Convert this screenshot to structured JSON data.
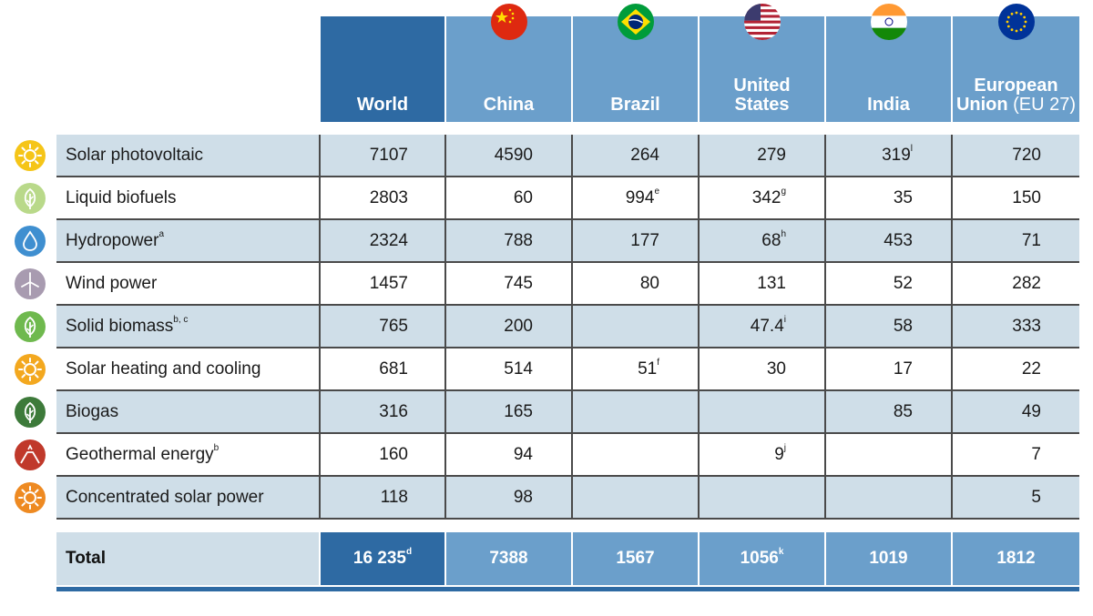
{
  "columns": [
    {
      "name": "World",
      "suffix": ""
    },
    {
      "name": "China",
      "suffix": "",
      "flag": "china-flag"
    },
    {
      "name": "Brazil",
      "suffix": "",
      "flag": "brazil-flag"
    },
    {
      "name": "United States",
      "line1": "United",
      "line2": "States",
      "flag": "us-flag"
    },
    {
      "name": "India",
      "suffix": "",
      "flag": "india-flag"
    },
    {
      "name": "European Union (EU 27)",
      "line1": "European",
      "line2": "Union",
      "line2_suffix": " (EU 27)",
      "flag": "eu-flag"
    }
  ],
  "rows": [
    {
      "label": "Solar photovoltaic",
      "label_sup": "",
      "icon": "sun-icon",
      "icon_color": "#f5c518",
      "values": [
        {
          "v": "7107"
        },
        {
          "v": "4590"
        },
        {
          "v": "264"
        },
        {
          "v": "279"
        },
        {
          "v": "319",
          "sup": "l"
        },
        {
          "v": "720"
        }
      ]
    },
    {
      "label": "Liquid biofuels",
      "label_sup": "",
      "icon": "leaf-icon",
      "icon_color": "#b9d98a",
      "values": [
        {
          "v": "2803"
        },
        {
          "v": "60"
        },
        {
          "v": "994",
          "sup": "e"
        },
        {
          "v": "342",
          "sup": "g"
        },
        {
          "v": "35"
        },
        {
          "v": "150"
        }
      ]
    },
    {
      "label": "Hydropower",
      "label_sup": "a",
      "icon": "water-drop-icon",
      "icon_color": "#3f8fd0",
      "values": [
        {
          "v": "2324"
        },
        {
          "v": "788"
        },
        {
          "v": "177"
        },
        {
          "v": "68",
          "sup": "h"
        },
        {
          "v": "453"
        },
        {
          "v": "71"
        }
      ]
    },
    {
      "label": "Wind power",
      "label_sup": "",
      "icon": "wind-turbine-icon",
      "icon_color": "#a89bb0",
      "values": [
        {
          "v": "1457"
        },
        {
          "v": "745"
        },
        {
          "v": "80"
        },
        {
          "v": "131"
        },
        {
          "v": "52"
        },
        {
          "v": "282"
        }
      ]
    },
    {
      "label": "Solid biomass",
      "label_sup": "b, c",
      "icon": "leaf-icon",
      "icon_color": "#6fb94e",
      "values": [
        {
          "v": "765"
        },
        {
          "v": "200"
        },
        {
          "v": ""
        },
        {
          "v": "47.4",
          "sup": "i"
        },
        {
          "v": "58"
        },
        {
          "v": "333"
        }
      ]
    },
    {
      "label": "Solar heating and cooling",
      "label_sup": "",
      "icon": "sun-icon",
      "icon_color": "#f3a81f",
      "values": [
        {
          "v": "681"
        },
        {
          "v": "514"
        },
        {
          "v": "51",
          "sup": "f"
        },
        {
          "v": "30"
        },
        {
          "v": "17"
        },
        {
          "v": "22"
        }
      ]
    },
    {
      "label": "Biogas",
      "label_sup": "",
      "icon": "leaf-icon",
      "icon_color": "#3d7a3a",
      "values": [
        {
          "v": "316"
        },
        {
          "v": "165"
        },
        {
          "v": ""
        },
        {
          "v": ""
        },
        {
          "v": "85"
        },
        {
          "v": "49"
        }
      ]
    },
    {
      "label": "Geothermal energy",
      "label_sup": "b",
      "icon": "volcano-icon",
      "icon_color": "#c0392b",
      "values": [
        {
          "v": "160"
        },
        {
          "v": "94"
        },
        {
          "v": ""
        },
        {
          "v": "9",
          "sup": "j"
        },
        {
          "v": ""
        },
        {
          "v": "7"
        }
      ]
    },
    {
      "label": "Concentrated solar power",
      "label_sup": "",
      "icon": "sun-icon",
      "icon_color": "#ee8a22",
      "values": [
        {
          "v": "118"
        },
        {
          "v": "98"
        },
        {
          "v": ""
        },
        {
          "v": ""
        },
        {
          "v": ""
        },
        {
          "v": "5"
        }
      ]
    }
  ],
  "total": {
    "label": "Total",
    "values": [
      {
        "v": "16 235",
        "sup": "d"
      },
      {
        "v": "7388"
      },
      {
        "v": "1567"
      },
      {
        "v": "1056",
        "sup": "k"
      },
      {
        "v": "1019"
      },
      {
        "v": "1812"
      }
    ]
  },
  "colors": {
    "world": "#2e6aa3",
    "country": "#6b9fcb",
    "shade": "#cfdee8"
  }
}
